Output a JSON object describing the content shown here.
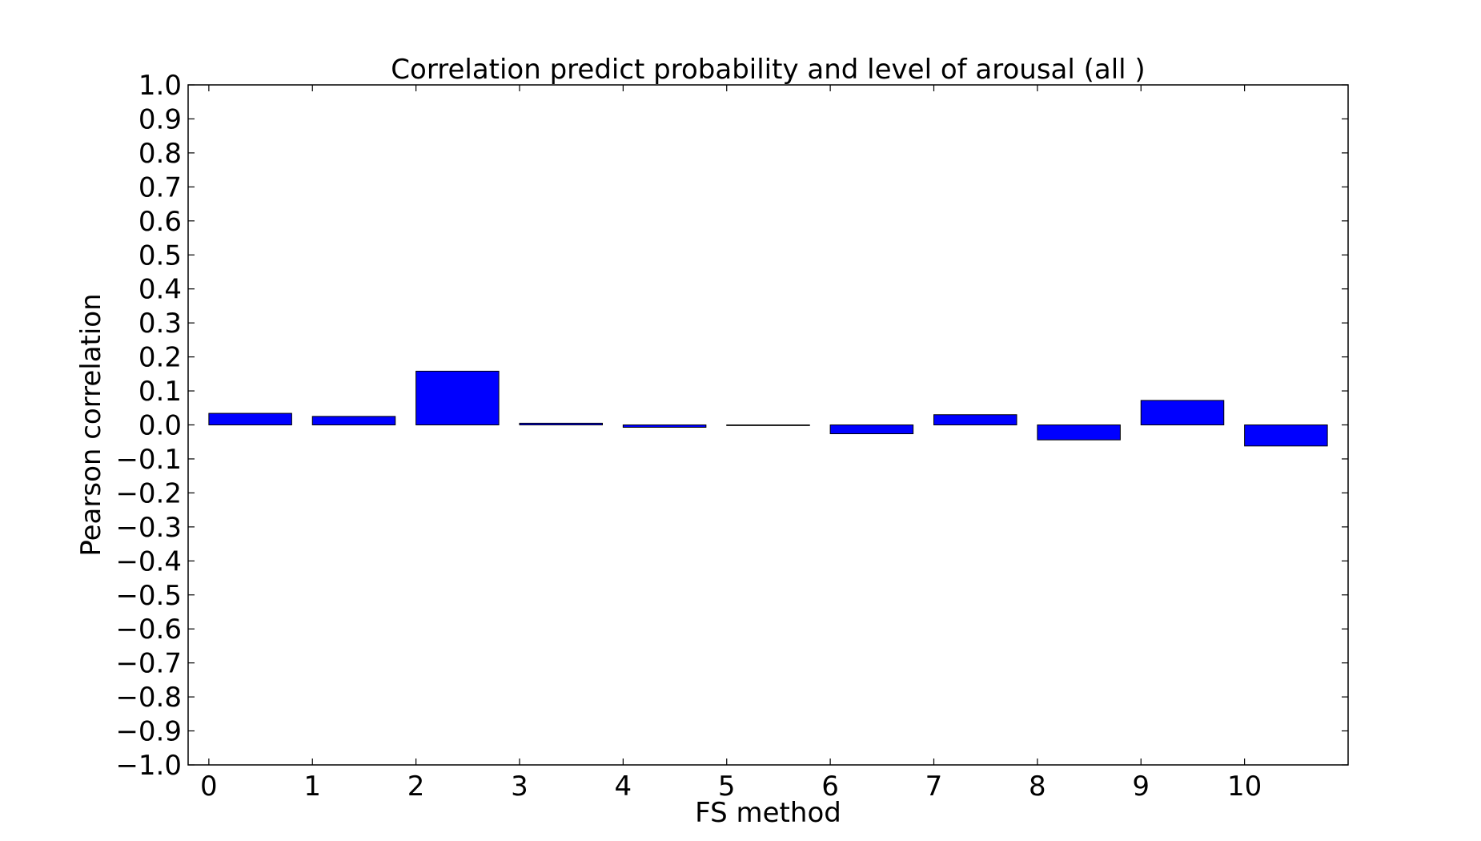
{
  "chart_data": {
    "type": "bar",
    "title": "Correlation predict probability and level of arousal (all )",
    "xlabel": "FS method",
    "ylabel": "Pearson correlation",
    "categories": [
      "0",
      "1",
      "2",
      "3",
      "4",
      "5",
      "6",
      "7",
      "8",
      "9",
      "10"
    ],
    "values": [
      0.034,
      0.025,
      0.158,
      0.005,
      -0.007,
      0.0,
      -0.026,
      0.03,
      -0.044,
      0.072,
      -0.062
    ],
    "ylim": [
      -1.0,
      1.0
    ],
    "xlim": [
      -0.2,
      11.0
    ],
    "yticks": [
      "1.0",
      "0.9",
      "0.8",
      "0.7",
      "0.6",
      "0.5",
      "0.4",
      "0.3",
      "0.2",
      "0.1",
      "0.0",
      "−0.1",
      "−0.2",
      "−0.3",
      "−0.4",
      "−0.5",
      "−0.6",
      "−0.7",
      "−0.8",
      "−0.9",
      "−1.0"
    ],
    "ytick_values": [
      1.0,
      0.9,
      0.8,
      0.7,
      0.6,
      0.5,
      0.4,
      0.3,
      0.2,
      0.1,
      0.0,
      -0.1,
      -0.2,
      -0.3,
      -0.4,
      -0.5,
      -0.6,
      -0.7,
      -0.8,
      -0.9,
      -1.0
    ],
    "xticks": [
      "0",
      "1",
      "2",
      "3",
      "4",
      "5",
      "6",
      "7",
      "8",
      "9",
      "10"
    ],
    "xtick_values": [
      0,
      1,
      2,
      3,
      4,
      5,
      6,
      7,
      8,
      9,
      10
    ],
    "bar_width": 0.8,
    "bar_color": "#0000ff",
    "edge_color": "#000000",
    "grid": false,
    "legend": null
  }
}
